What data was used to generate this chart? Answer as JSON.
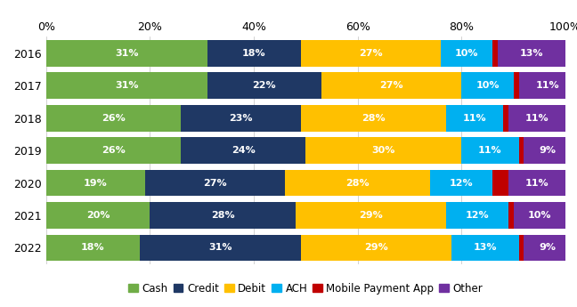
{
  "years": [
    "2016",
    "2017",
    "2018",
    "2019",
    "2020",
    "2021",
    "2022"
  ],
  "categories": [
    "Cash",
    "Credit",
    "Debit",
    "ACH",
    "Mobile Payment App",
    "Other"
  ],
  "colors": [
    "#70AD47",
    "#1F3864",
    "#FFC000",
    "#00B0F0",
    "#C00000",
    "#7030A0"
  ],
  "values": {
    "Cash": [
      31,
      31,
      26,
      26,
      19,
      20,
      18
    ],
    "Credit": [
      18,
      22,
      23,
      24,
      27,
      28,
      31
    ],
    "Debit": [
      27,
      27,
      28,
      30,
      28,
      29,
      29
    ],
    "ACH": [
      10,
      10,
      11,
      11,
      12,
      12,
      13
    ],
    "Mobile Payment App": [
      1,
      1,
      1,
      1,
      3,
      1,
      1
    ],
    "Other": [
      13,
      11,
      11,
      9,
      11,
      10,
      9
    ]
  },
  "labels": {
    "Cash": [
      "31%",
      "31%",
      "26%",
      "26%",
      "19%",
      "20%",
      "18%"
    ],
    "Credit": [
      "18%",
      "22%",
      "23%",
      "24%",
      "27%",
      "28%",
      "31%"
    ],
    "Debit": [
      "27%",
      "27%",
      "28%",
      "30%",
      "28%",
      "29%",
      "29%"
    ],
    "ACH": [
      "10%",
      "10%",
      "11%",
      "11%",
      "12%",
      "12%",
      "13%"
    ],
    "Mobile Payment App": [
      "",
      "",
      "",
      "",
      "",
      "",
      ""
    ],
    "Other": [
      "13%",
      "11%",
      "11%",
      "9%",
      "11%",
      "10%",
      "9%"
    ]
  },
  "xlim": [
    0,
    100
  ],
  "label_color": "#FFFFFF",
  "label_fontsize": 8,
  "tick_fontsize": 9,
  "legend_fontsize": 8.5,
  "background_color": "#FFFFFF",
  "bar_height": 0.82
}
